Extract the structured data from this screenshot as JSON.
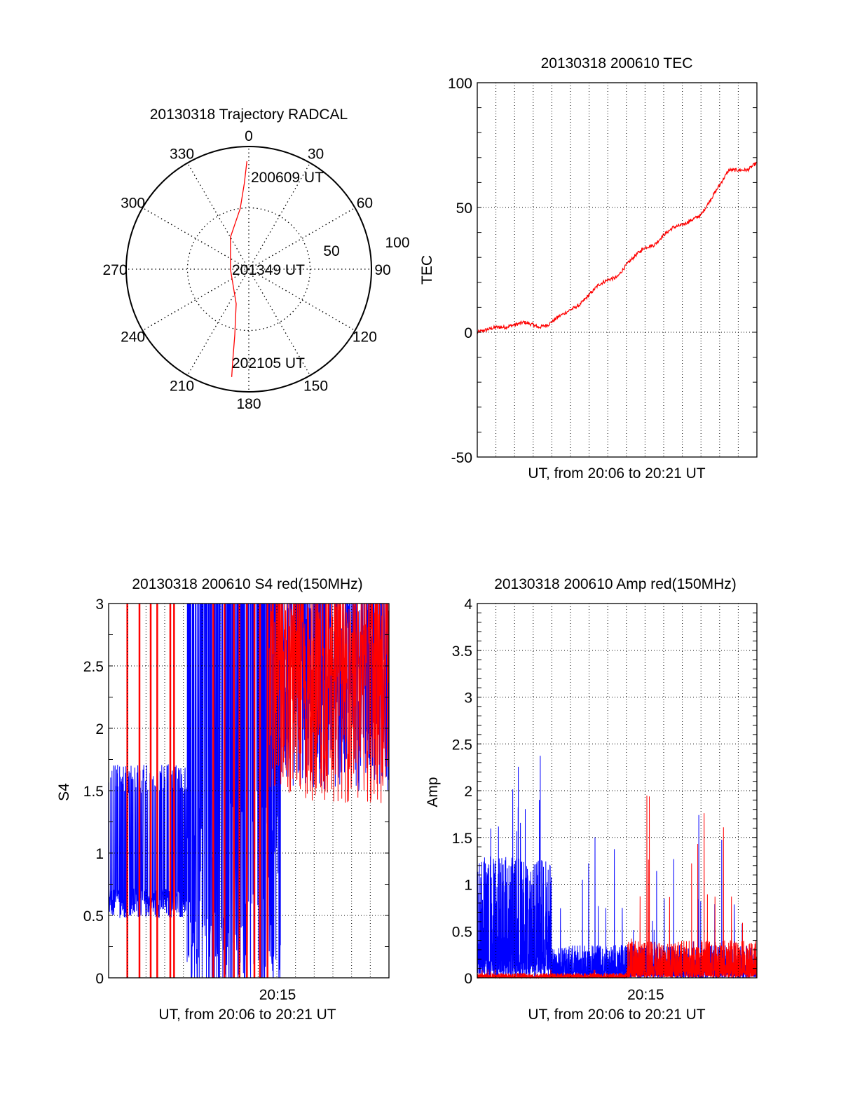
{
  "colors": {
    "red": "#ff0000",
    "blue": "#0000ff",
    "axis": "#000000"
  },
  "chart_data": [
    {
      "type": "polar",
      "title": "20130318 Trajectory RADCAL",
      "angle_labels": [
        "0",
        "30",
        "60",
        "90",
        "120",
        "150",
        "180",
        "210",
        "240",
        "270",
        "300",
        "330"
      ],
      "radius_labels": [
        "50",
        "100"
      ],
      "rlim": [
        0,
        100
      ],
      "grid": true,
      "trajectory": {
        "azimuth_deg": [
          359,
          357,
          352,
          330,
          270,
          200,
          192,
          190,
          189
        ],
        "radius": [
          88,
          70,
          50,
          30,
          15,
          30,
          55,
          75,
          89
        ]
      },
      "annotations": [
        "200609 UT",
        "201349 UT",
        "202105 UT"
      ]
    },
    {
      "type": "line",
      "title": "20130318 200610 TEC",
      "xlabel": "UT, from 20:06 to 20:21 UT",
      "ylabel": "TEC",
      "xlim_minutes": [
        0,
        15
      ],
      "ylim": [
        -50,
        100
      ],
      "yticks": [
        "100",
        "50",
        "0",
        "-50"
      ],
      "grid": true,
      "series": [
        {
          "name": "TEC",
          "color": "red",
          "x_minutes": [
            0,
            0.5,
            1,
            1.5,
            2,
            2.5,
            3,
            3.3,
            3.8,
            4.3,
            5,
            5.5,
            6,
            6.5,
            7,
            7.5,
            8,
            8.5,
            9,
            9.5,
            10,
            10.5,
            11,
            11.5,
            12,
            12.5,
            13,
            13.5,
            14,
            14.5,
            15
          ],
          "values": [
            0,
            1,
            2,
            2,
            3,
            4,
            3,
            2,
            3,
            6,
            9,
            11,
            15,
            19,
            21,
            22,
            27,
            31,
            34,
            35,
            39,
            42,
            43,
            45,
            47,
            53,
            59,
            65,
            65,
            65,
            68
          ]
        }
      ]
    },
    {
      "type": "line",
      "title": "20130318 200610 S4 red(150MHz)",
      "xlabel": "UT, from 20:06 to 20:21 UT",
      "ylabel": "S4",
      "xlim_minutes": [
        0,
        15
      ],
      "ylim": [
        0,
        3
      ],
      "yticks": [
        "0",
        "0.5",
        "1",
        "1.5",
        "2",
        "2.5",
        "3"
      ],
      "xticks": [
        "20:15"
      ],
      "grid": true,
      "series": [
        {
          "name": "S4 blue",
          "color": "blue",
          "segments": [
            {
              "from_min": 0,
              "to_min": 4.2,
              "mean": 0.6,
              "spread": 0.12
            },
            {
              "from_min": 4.2,
              "to_min": 9.2,
              "mean": 1.6,
              "spread": 1.6
            },
            {
              "from_min": 9.2,
              "to_min": 15,
              "mean": 2.3,
              "spread": 0.8
            }
          ]
        },
        {
          "name": "S4 red",
          "color": "red",
          "spikes_min": [
            1.0,
            1.65,
            2.25,
            2.6,
            3.3,
            3.5,
            5.6,
            6.2,
            6.7,
            7.0,
            7.4,
            7.8,
            8.1,
            8.5
          ],
          "segments": [
            {
              "from_min": 8.6,
              "to_min": 15,
              "mean": 2.2,
              "spread": 0.8
            }
          ]
        }
      ]
    },
    {
      "type": "line",
      "title": "20130318 200610 Amp red(150MHz)",
      "xlabel": "UT, from 20:06 to 20:21 UT",
      "ylabel": "Amp",
      "xlim_minutes": [
        0,
        15
      ],
      "ylim": [
        0,
        4
      ],
      "yticks": [
        "0",
        "0.5",
        "1",
        "1.5",
        "2",
        "2.5",
        "3",
        "3.5",
        "4"
      ],
      "xticks": [
        "20:15"
      ],
      "grid": true,
      "series": [
        {
          "name": "Amp blue",
          "color": "blue",
          "segments": [
            {
              "from_min": 0,
              "to_min": 4,
              "envelope": 1.3,
              "peak": 2.45
            },
            {
              "from_min": 4,
              "to_min": 15,
              "envelope": 0.35,
              "peak": 1.75
            }
          ]
        },
        {
          "name": "Amp red",
          "color": "red",
          "segments": [
            {
              "from_min": 0,
              "to_min": 8,
              "envelope": 0.05,
              "peak": 0.1
            },
            {
              "from_min": 8,
              "to_min": 15,
              "envelope": 0.4,
              "peak": 2.05
            }
          ]
        }
      ]
    }
  ]
}
